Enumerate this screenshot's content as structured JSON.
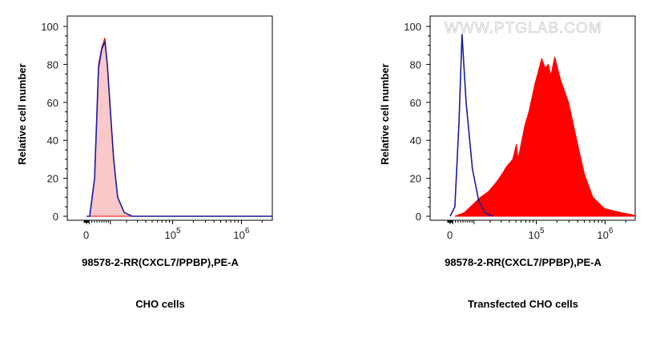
{
  "chart_data": [
    {
      "type": "area",
      "title": "CHO cells",
      "xlabel": "98578-2-RR(CXCL7/PPBP),PE-A",
      "ylabel": "Relative cell number",
      "xscale": "biexponential",
      "xticks": [
        "0",
        "10^5",
        "10^6"
      ],
      "ylim": [
        0,
        100
      ],
      "yticks": [
        0,
        20,
        40,
        60,
        80,
        100
      ],
      "series": [
        {
          "color": "#ff0000",
          "fill": "#f9c8c8",
          "x": [
            0,
            1220,
            3100,
            4650,
            6000,
            7400,
            8500,
            9700,
            11700,
            14000,
            18300,
            24800,
            3000000
          ],
          "y": [
            0,
            0,
            20,
            80,
            89,
            94,
            80,
            62,
            30,
            10,
            2,
            0,
            0
          ]
        },
        {
          "color": "#1a1aa0",
          "fill": "none",
          "x": [
            0,
            1220,
            3100,
            4650,
            6000,
            7400,
            8500,
            9700,
            11700,
            14000,
            18300,
            24800,
            3000000
          ],
          "y": [
            0,
            0,
            20,
            78,
            88,
            92,
            80,
            60,
            30,
            10,
            2,
            0,
            0
          ]
        }
      ]
    },
    {
      "type": "area",
      "title": "Transfected CHO cells",
      "xlabel": "98578-2-RR(CXCL7/PPBP),PE-A",
      "ylabel": "Relative cell number",
      "xscale": "biexponential",
      "xticks": [
        "0",
        "10^5",
        "10^6"
      ],
      "ylim": [
        0,
        100
      ],
      "yticks": [
        0,
        20,
        40,
        60,
        80,
        100
      ],
      "watermark": "WWW.PTGLAB.COM",
      "series": [
        {
          "color": "#ff0000",
          "fill": "#ff0000",
          "x": [
            1800,
            5600,
            9200,
            13500,
            18700,
            25400,
            32000,
            36000,
            45000,
            51000,
            54000,
            68000,
            78000,
            96000,
            120000,
            135000,
            150000,
            163000,
            186000,
            225000,
            295000,
            388000,
            503000,
            665000,
            983000,
            1690000,
            2700000
          ],
          "y": [
            0,
            2,
            6,
            10,
            13,
            18,
            23,
            26,
            30,
            38,
            30,
            48,
            55,
            70,
            83,
            78,
            80,
            74,
            84,
            72,
            60,
            40,
            22,
            10,
            4,
            2,
            0.5
          ]
        },
        {
          "color": "#1a1aa0",
          "fill": "none",
          "x": [
            0,
            1800,
            3400,
            4600,
            6300,
            9200,
            12500,
            16000,
            22000
          ],
          "y": [
            0,
            5,
            50,
            96,
            60,
            25,
            8,
            2,
            0
          ]
        }
      ]
    }
  ]
}
